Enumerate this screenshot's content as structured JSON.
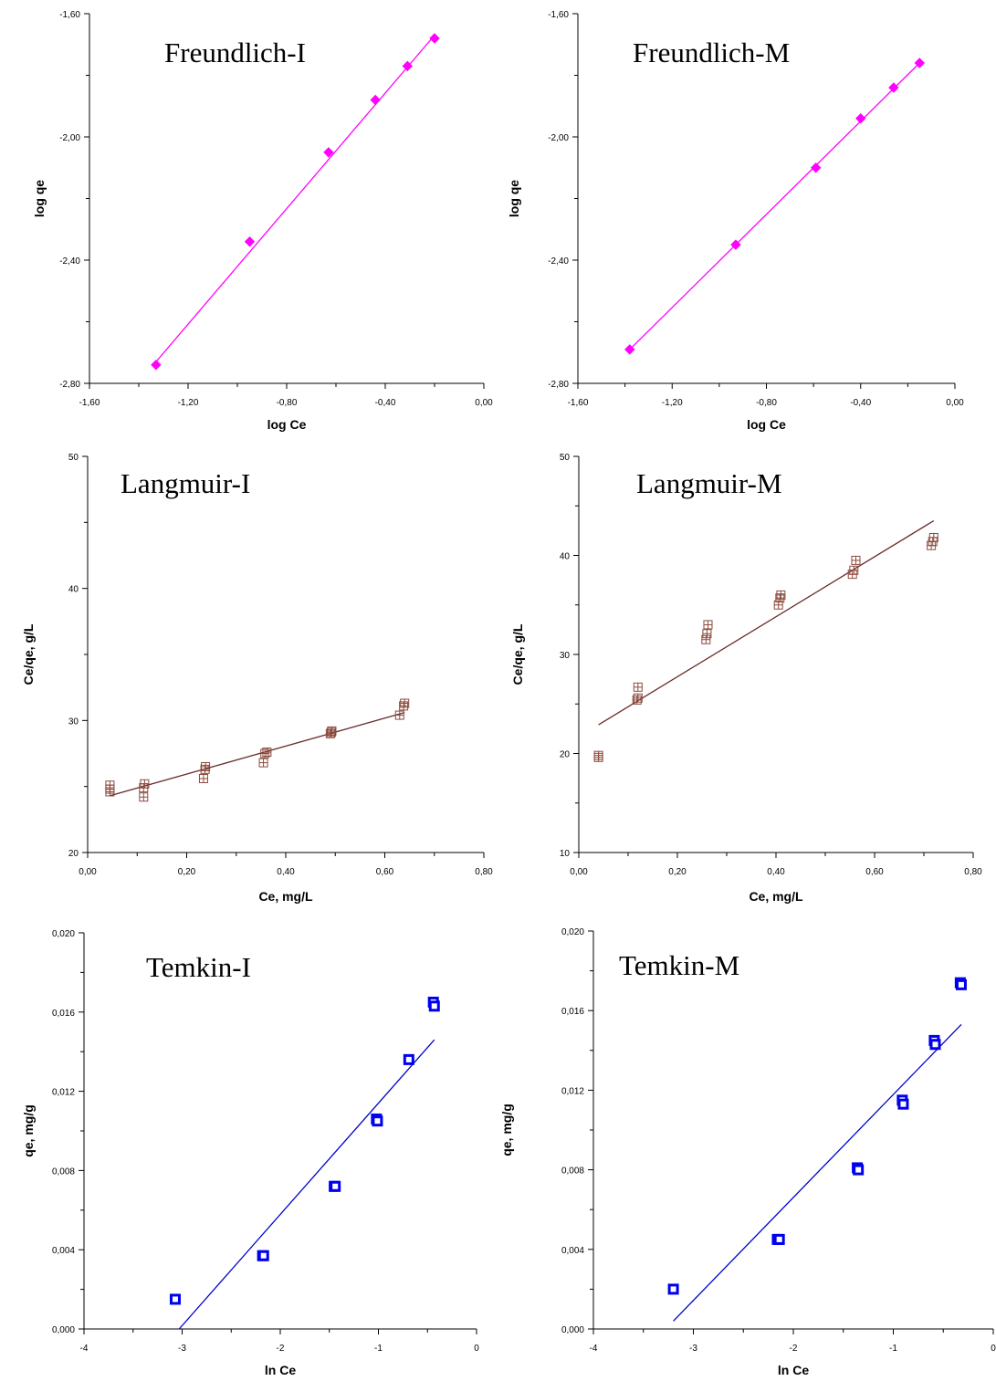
{
  "chart_data": [
    {
      "type": "scatter",
      "title": "Freundlich-I",
      "xlabel": "log Ce",
      "ylabel": "log qe",
      "xlim": [
        -1.6,
        0.0
      ],
      "ylim": [
        -2.8,
        -1.6
      ],
      "xticks": [
        -1.6,
        -1.2,
        -0.8,
        -0.4,
        0.0
      ],
      "xtick_labels": [
        "-1,60",
        "-1,20",
        "-0,80",
        "-0,40",
        "0,00"
      ],
      "yticks": [
        -2.8,
        -2.4,
        -2.0,
        -1.6
      ],
      "ytick_labels": [
        "-2,80",
        "-2,40",
        "-2,00",
        "-1,60"
      ],
      "marker": "diamond",
      "color": "#ff00ff",
      "points": [
        {
          "x": -1.33,
          "y": -2.74
        },
        {
          "x": -0.95,
          "y": -2.34
        },
        {
          "x": -0.63,
          "y": -2.05
        },
        {
          "x": -0.44,
          "y": -1.88
        },
        {
          "x": -0.31,
          "y": -1.77
        },
        {
          "x": -0.2,
          "y": -1.68
        }
      ],
      "fit_line": {
        "x": [
          -1.33,
          -0.2
        ],
        "y": [
          -2.73,
          -1.67
        ],
        "color": "#ff00ff"
      }
    },
    {
      "type": "scatter",
      "title": "Freundlich-M",
      "xlabel": "log Ce",
      "ylabel": "log qe",
      "xlim": [
        -1.6,
        0.0
      ],
      "ylim": [
        -2.8,
        -1.6
      ],
      "xticks": [
        -1.6,
        -1.2,
        -0.8,
        -0.4,
        0.0
      ],
      "xtick_labels": [
        "-1,60",
        "-1,20",
        "-0,80",
        "-0,40",
        "0,00"
      ],
      "yticks": [
        -2.8,
        -2.4,
        -2.0,
        -1.6
      ],
      "ytick_labels": [
        "-2,80",
        "-2,40",
        "-2,00",
        "-1,60"
      ],
      "marker": "diamond",
      "color": "#ff00ff",
      "points": [
        {
          "x": -1.38,
          "y": -2.69
        },
        {
          "x": -0.93,
          "y": -2.35
        },
        {
          "x": -0.59,
          "y": -2.1
        },
        {
          "x": -0.4,
          "y": -1.94
        },
        {
          "x": -0.26,
          "y": -1.84
        },
        {
          "x": -0.15,
          "y": -1.76
        }
      ],
      "fit_line": {
        "x": [
          -1.38,
          -0.15
        ],
        "y": [
          -2.69,
          -1.76
        ],
        "color": "#ff00ff"
      }
    },
    {
      "type": "scatter",
      "title": "Langmuir-I",
      "xlabel": "Ce, mg/L",
      "ylabel": "Ce/qe, g/L",
      "xlim": [
        0.0,
        0.8
      ],
      "ylim": [
        20,
        50
      ],
      "xticks": [
        0.0,
        0.2,
        0.4,
        0.6,
        0.8
      ],
      "xtick_labels": [
        "0,00",
        "0,20",
        "0,40",
        "0,60",
        "0,80"
      ],
      "yticks": [
        20,
        30,
        40,
        50
      ],
      "ytick_labels": [
        "20",
        "30",
        "40",
        "50"
      ],
      "marker": "square-cross",
      "color": "#8b4a3c",
      "points": [
        {
          "x": 0.045,
          "y": 24.6
        },
        {
          "x": 0.045,
          "y": 24.8
        },
        {
          "x": 0.045,
          "y": 25.1
        },
        {
          "x": 0.113,
          "y": 24.2
        },
        {
          "x": 0.113,
          "y": 24.9
        },
        {
          "x": 0.115,
          "y": 25.2
        },
        {
          "x": 0.234,
          "y": 25.6
        },
        {
          "x": 0.237,
          "y": 26.3
        },
        {
          "x": 0.238,
          "y": 26.5
        },
        {
          "x": 0.355,
          "y": 26.8
        },
        {
          "x": 0.358,
          "y": 27.5
        },
        {
          "x": 0.362,
          "y": 27.6
        },
        {
          "x": 0.49,
          "y": 29.0
        },
        {
          "x": 0.492,
          "y": 29.1
        },
        {
          "x": 0.493,
          "y": 29.2
        },
        {
          "x": 0.63,
          "y": 30.4
        },
        {
          "x": 0.638,
          "y": 31.1
        },
        {
          "x": 0.64,
          "y": 31.3
        }
      ],
      "fit_line": {
        "x": [
          0.045,
          0.64
        ],
        "y": [
          24.3,
          30.6
        ],
        "color": "#6b2a2a"
      }
    },
    {
      "type": "scatter",
      "title": "Langmuir-M",
      "xlabel": "Ce, mg/L",
      "ylabel": "Ce/qe, g/L",
      "xlim": [
        0.0,
        0.8
      ],
      "ylim": [
        10,
        50
      ],
      "xticks": [
        0.0,
        0.2,
        0.4,
        0.6,
        0.8
      ],
      "xtick_labels": [
        "0,00",
        "0,20",
        "0,40",
        "0,60",
        "0,80"
      ],
      "yticks": [
        10,
        20,
        30,
        40,
        50
      ],
      "ytick_labels": [
        "10",
        "20",
        "30",
        "40",
        "50"
      ],
      "marker": "square-cross",
      "color": "#8b4a3c",
      "points": [
        {
          "x": 0.04,
          "y": 19.6
        },
        {
          "x": 0.04,
          "y": 19.8
        },
        {
          "x": 0.118,
          "y": 25.4
        },
        {
          "x": 0.12,
          "y": 25.6
        },
        {
          "x": 0.12,
          "y": 26.7
        },
        {
          "x": 0.258,
          "y": 31.5
        },
        {
          "x": 0.26,
          "y": 32.1
        },
        {
          "x": 0.262,
          "y": 33.0
        },
        {
          "x": 0.405,
          "y": 35.0
        },
        {
          "x": 0.408,
          "y": 35.7
        },
        {
          "x": 0.41,
          "y": 36.0
        },
        {
          "x": 0.555,
          "y": 38.1
        },
        {
          "x": 0.558,
          "y": 38.5
        },
        {
          "x": 0.562,
          "y": 39.5
        },
        {
          "x": 0.715,
          "y": 41.0
        },
        {
          "x": 0.718,
          "y": 41.4
        },
        {
          "x": 0.72,
          "y": 41.8
        }
      ],
      "fit_line": {
        "x": [
          0.04,
          0.72
        ],
        "y": [
          22.9,
          43.5
        ],
        "color": "#6b2a2a"
      }
    },
    {
      "type": "scatter",
      "title": "Temkin-I",
      "xlabel": "ln Ce",
      "ylabel": "qe, mg/g",
      "xlim": [
        -4,
        0
      ],
      "ylim": [
        0.0,
        0.02
      ],
      "xticks": [
        -4,
        -3,
        -2,
        -1,
        0
      ],
      "xtick_labels": [
        "-4",
        "-3",
        "-2",
        "-1",
        "0"
      ],
      "yticks": [
        0.0,
        0.004,
        0.008,
        0.012,
        0.016,
        0.02
      ],
      "ytick_labels": [
        "0,000",
        "0,004",
        "0,008",
        "0,012",
        "0,016",
        "0,020"
      ],
      "marker": "square",
      "color": "#0000ee",
      "points": [
        {
          "x": -3.07,
          "y": 0.0015
        },
        {
          "x": -2.18,
          "y": 0.0037
        },
        {
          "x": -2.17,
          "y": 0.0037
        },
        {
          "x": -1.45,
          "y": 0.0072
        },
        {
          "x": -1.44,
          "y": 0.0072
        },
        {
          "x": -1.02,
          "y": 0.0106
        },
        {
          "x": -1.01,
          "y": 0.0105
        },
        {
          "x": -0.69,
          "y": 0.0136
        },
        {
          "x": -0.44,
          "y": 0.0165
        },
        {
          "x": -0.43,
          "y": 0.0163
        }
      ],
      "fit_line": {
        "x": [
          -3.03,
          -0.43
        ],
        "y": [
          0.0,
          0.0146
        ],
        "color": "#0000cc"
      }
    },
    {
      "type": "scatter",
      "title": "Temkin-M",
      "xlabel": "ln Ce",
      "ylabel": "qe, mg/g",
      "xlim": [
        -4,
        0
      ],
      "ylim": [
        0.0,
        0.02
      ],
      "xticks": [
        -4,
        -3,
        -2,
        -1,
        0
      ],
      "xtick_labels": [
        "-4",
        "-3",
        "-2",
        "-1",
        "0"
      ],
      "yticks": [
        0.0,
        0.004,
        0.008,
        0.012,
        0.016,
        0.02
      ],
      "ytick_labels": [
        "0,000",
        "0,004",
        "0,008",
        "0,012",
        "0,016",
        "0,020"
      ],
      "marker": "square",
      "color": "#0000ee",
      "points": [
        {
          "x": -3.2,
          "y": 0.002
        },
        {
          "x": -2.16,
          "y": 0.0045
        },
        {
          "x": -2.14,
          "y": 0.0045
        },
        {
          "x": -1.36,
          "y": 0.0081
        },
        {
          "x": -1.35,
          "y": 0.008
        },
        {
          "x": -0.91,
          "y": 0.0115
        },
        {
          "x": -0.9,
          "y": 0.0113
        },
        {
          "x": -0.59,
          "y": 0.0145
        },
        {
          "x": -0.58,
          "y": 0.0143
        },
        {
          "x": -0.33,
          "y": 0.0174
        },
        {
          "x": -0.32,
          "y": 0.0173
        }
      ],
      "fit_line": {
        "x": [
          -3.2,
          -0.32
        ],
        "y": [
          0.0004,
          0.0153
        ],
        "color": "#0000cc"
      }
    }
  ]
}
